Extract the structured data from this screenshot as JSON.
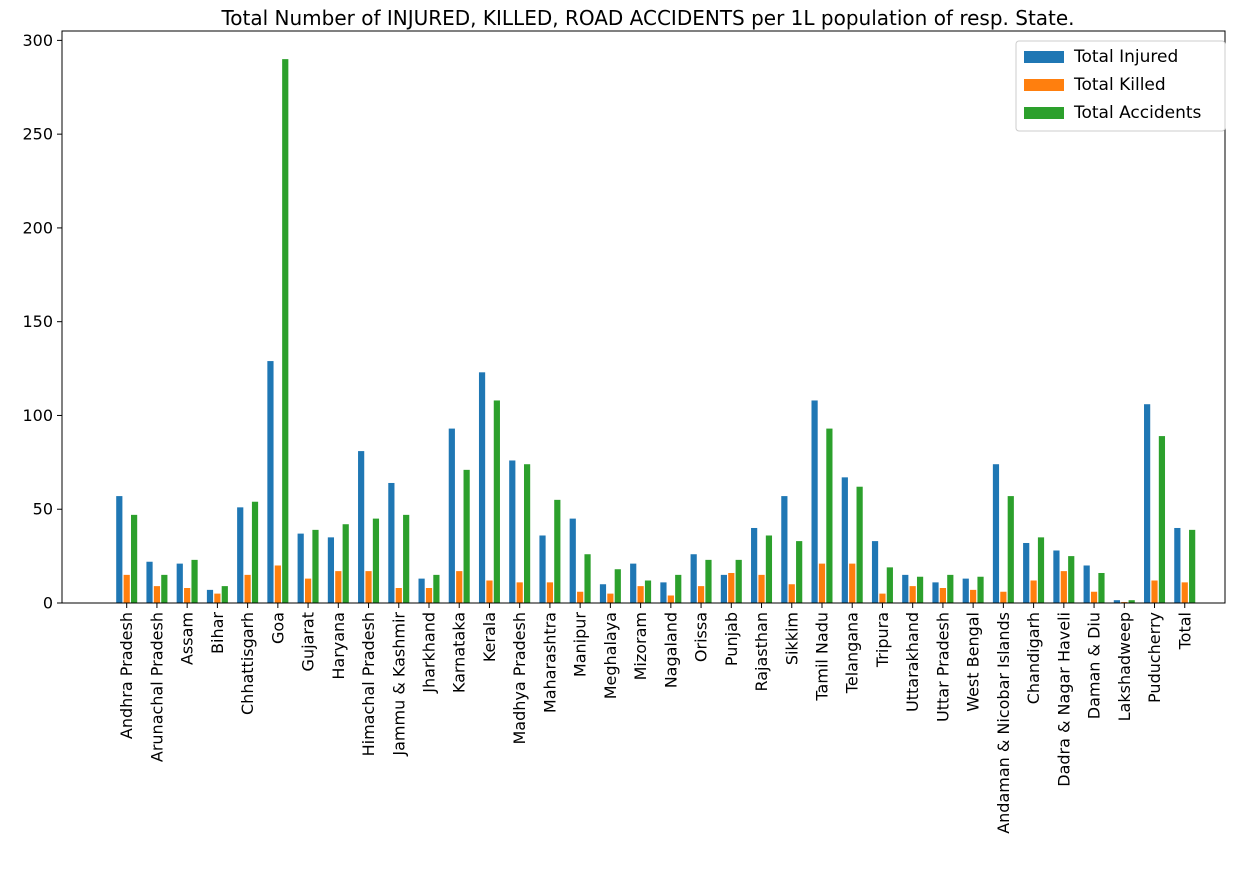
{
  "chart_data": {
    "type": "bar",
    "title": "Total Number of INJURED, KILLED, ROAD ACCIDENTS per 1L population of resp. State.",
    "xlabel": "",
    "ylabel": "",
    "ylim": [
      0,
      305
    ],
    "yticks": [
      0,
      50,
      100,
      150,
      200,
      250,
      300
    ],
    "grid": false,
    "legend_position": "top-right",
    "categories": [
      "Andhra Pradesh",
      "Arunachal Pradesh",
      "Assam",
      "Bihar",
      "Chhattisgarh",
      "Goa",
      "Gujarat",
      "Haryana",
      "Himachal Pradesh",
      "Jammu & Kashmir",
      "Jharkhand",
      "Karnataka",
      "Kerala",
      "Madhya Pradesh",
      "Maharashtra",
      "Manipur",
      "Meghalaya",
      "Mizoram",
      "Nagaland",
      "Orissa",
      "Punjab",
      "Rajasthan",
      "Sikkim",
      "Tamil Nadu",
      "Telangana",
      "Tripura",
      "Uttarakhand",
      "Uttar Pradesh",
      "West Bengal",
      "Andaman & Nicobar Islands",
      "Chandigarh",
      "Dadra & Nagar Haveli",
      "Daman & Diu",
      "Lakshadweep",
      "Puducherry",
      "Total"
    ],
    "series": [
      {
        "name": "Total Injured",
        "color": "#1f77b4",
        "values": [
          57,
          22,
          21,
          7,
          51,
          129,
          37,
          35,
          81,
          64,
          13,
          93,
          123,
          76,
          36,
          45,
          10,
          21,
          11,
          26,
          15,
          40,
          57,
          108,
          67,
          33,
          15,
          11,
          13,
          74,
          32,
          28,
          20,
          1.5,
          106,
          40
        ]
      },
      {
        "name": "Total Killed",
        "color": "#ff7f0e",
        "values": [
          15,
          9,
          8,
          5,
          15,
          20,
          13,
          17,
          17,
          8,
          8,
          17,
          12,
          11,
          11,
          6,
          5,
          9,
          4,
          9,
          16,
          15,
          10,
          21,
          21,
          5,
          9,
          8,
          7,
          6,
          12,
          17,
          6,
          0.5,
          12,
          11
        ]
      },
      {
        "name": "Total Accidents",
        "color": "#2ca02c",
        "values": [
          47,
          15,
          23,
          9,
          54,
          290,
          39,
          42,
          45,
          47,
          15,
          71,
          108,
          74,
          55,
          26,
          18,
          12,
          15,
          23,
          23,
          36,
          33,
          93,
          62,
          19,
          14,
          15,
          14,
          57,
          35,
          25,
          16,
          1.5,
          89,
          39
        ]
      }
    ]
  }
}
